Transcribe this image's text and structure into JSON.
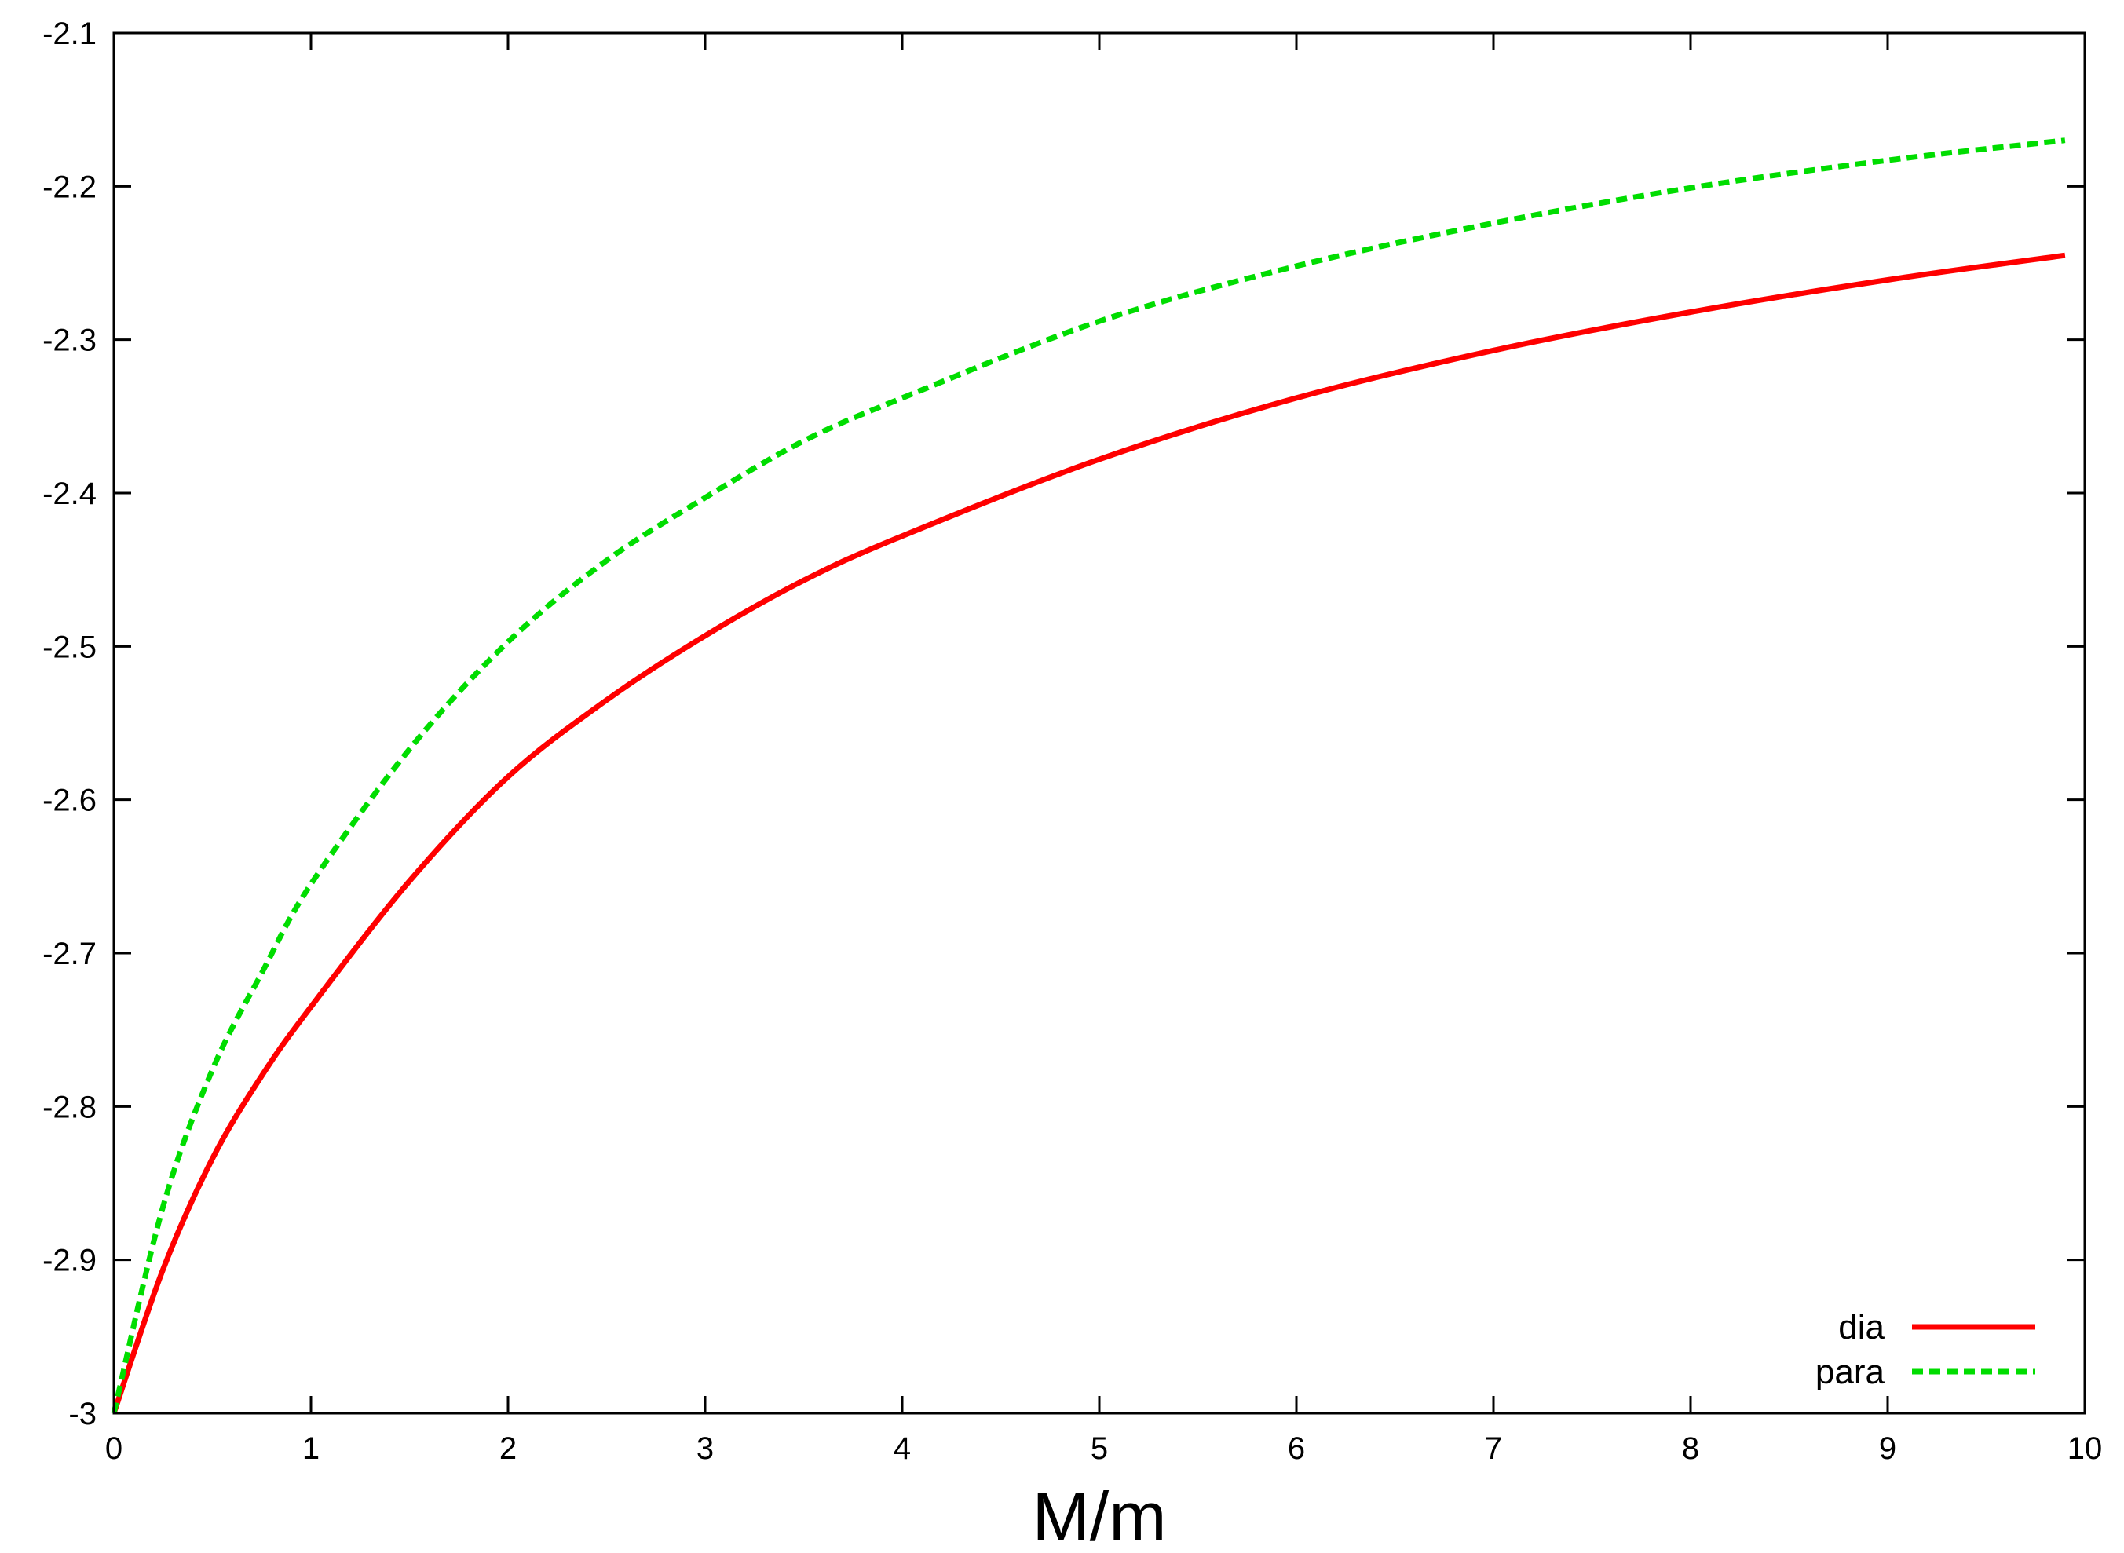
{
  "chart_data": {
    "type": "line",
    "title": "",
    "xlabel": "M/m",
    "ylabel": "",
    "xlim": [
      0,
      10
    ],
    "ylim": [
      -3,
      -2.1
    ],
    "xticks": [
      0,
      1,
      2,
      3,
      4,
      5,
      6,
      7,
      8,
      9,
      10
    ],
    "xtick_labels": [
      "0",
      "1",
      "2",
      "3",
      "4",
      "5",
      "6",
      "7",
      "8",
      "9",
      "10"
    ],
    "yticks": [
      -3,
      -2.9,
      -2.8,
      -2.7,
      -2.6,
      -2.5,
      -2.4,
      -2.3,
      -2.2,
      -2.1
    ],
    "ytick_labels": [
      "-3",
      "-2.9",
      "-2.8",
      "-2.7",
      "-2.6",
      "-2.5",
      "-2.4",
      "-2.3",
      "-2.2",
      "-2.1"
    ],
    "grid": false,
    "legend_position": "bottom-right",
    "series": [
      {
        "name": "dia",
        "color": "#ff0000",
        "line_style": "solid",
        "x": [
          0,
          0.25,
          0.5,
          0.75,
          1,
          1.5,
          2,
          2.5,
          3,
          3.5,
          4,
          5,
          6,
          7,
          8,
          9,
          9.9
        ],
        "y": [
          -3.0,
          -2.906,
          -2.834,
          -2.78,
          -2.735,
          -2.653,
          -2.585,
          -2.535,
          -2.493,
          -2.457,
          -2.428,
          -2.378,
          -2.338,
          -2.307,
          -2.282,
          -2.261,
          -2.245
        ]
      },
      {
        "name": "para",
        "color": "#00dd00",
        "line_style": "dashed",
        "x": [
          0,
          0.25,
          0.5,
          0.75,
          1,
          1.5,
          2,
          2.5,
          3,
          3.5,
          4,
          5,
          6,
          7,
          8,
          9,
          9.9
        ],
        "y": [
          -3.0,
          -2.865,
          -2.776,
          -2.713,
          -2.655,
          -2.567,
          -2.497,
          -2.444,
          -2.403,
          -2.366,
          -2.338,
          -2.288,
          -2.252,
          -2.224,
          -2.201,
          -2.183,
          -2.17
        ]
      }
    ]
  }
}
